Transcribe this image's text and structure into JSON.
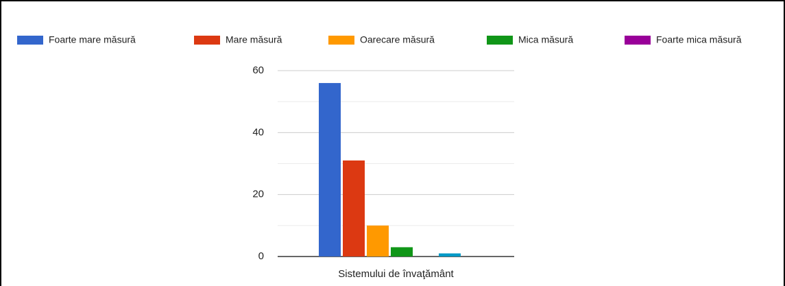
{
  "chart_data": {
    "type": "bar",
    "categories": [
      "Sistemului de învaţământ"
    ],
    "series": [
      {
        "name": "Foarte mare măsură",
        "color": "#3366cc",
        "values": [
          56
        ]
      },
      {
        "name": "Mare măsură",
        "color": "#dc3912",
        "values": [
          31
        ]
      },
      {
        "name": "Oarecare măsură",
        "color": "#ff9900",
        "values": [
          10
        ]
      },
      {
        "name": "Mica măsură",
        "color": "#109618",
        "values": [
          3
        ]
      },
      {
        "name": "Foarte mica măsură",
        "color": "#990099",
        "values": [
          0
        ]
      },
      {
        "name": null,
        "color": "#0099c6",
        "values": [
          1
        ]
      }
    ],
    "ylim": [
      0,
      60
    ],
    "yticks": [
      0,
      20,
      40,
      60
    ],
    "minor_yticks": [
      10,
      30,
      50
    ],
    "grid": true,
    "legend": "top"
  }
}
